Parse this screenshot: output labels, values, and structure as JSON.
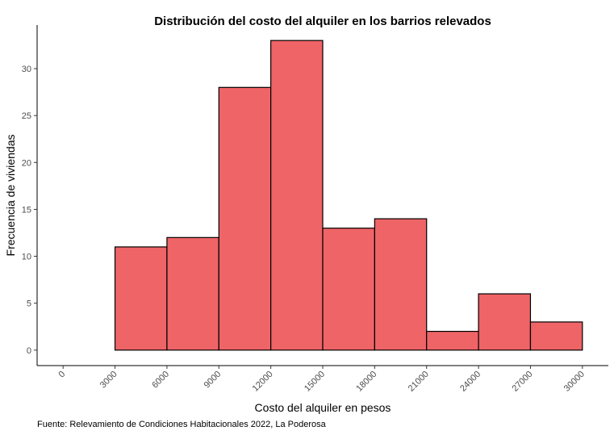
{
  "chart_data": {
    "type": "bar",
    "title": "Distribución del costo del alquiler en los barrios relevados",
    "xlabel": "Costo del alquiler en pesos",
    "ylabel": "Frecuencia de viviendas",
    "caption": "Fuente: Relevamiento de Condiciones Habitacionales 2022, La Poderosa",
    "bin_edges": [
      0,
      3000,
      6000,
      9000,
      12000,
      15000,
      18000,
      21000,
      24000,
      27000,
      30000
    ],
    "values": [
      0,
      11,
      12,
      28,
      33,
      13,
      14,
      2,
      6,
      3
    ],
    "xticks": [
      "0",
      "3000",
      "6000",
      "9000",
      "12000",
      "15000",
      "18000",
      "21000",
      "24000",
      "27000",
      "30000"
    ],
    "yticks": [
      "0",
      "5",
      "10",
      "15",
      "20",
      "25",
      "30"
    ],
    "xlim": [
      -1500,
      31500
    ],
    "ylim": [
      -1.65,
      34.65
    ],
    "bar_color": "#ee6467",
    "grid": false
  }
}
